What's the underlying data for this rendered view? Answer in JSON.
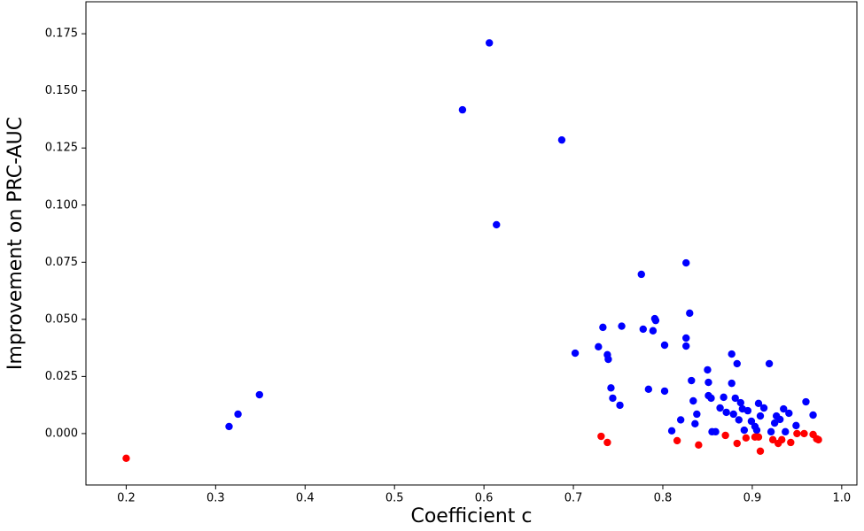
{
  "chart_data": {
    "type": "scatter",
    "x_label": "Coefficient c",
    "y_label": "Improvement on PRC-AUC",
    "xlim": [
      0.155,
      1.017
    ],
    "ylim": [
      -0.0225,
      0.189
    ],
    "xticks": [
      0.2,
      0.3,
      0.4,
      0.5,
      0.6,
      0.7,
      0.8,
      0.9,
      {
        "value": 1.0,
        "label": "1.0"
      }
    ],
    "yticks": [
      {
        "value": 0,
        "label": "0.000"
      },
      {
        "value": 0.025,
        "label": "0.025"
      },
      {
        "value": 0.05,
        "label": "0.050"
      },
      {
        "value": 0.075,
        "label": "0.075"
      },
      {
        "value": 0.1,
        "label": "0.100"
      },
      {
        "value": 0.125,
        "label": "0.125"
      },
      {
        "value": 0.15,
        "label": "0.150"
      },
      {
        "value": 0.175,
        "label": "0.175"
      }
    ],
    "grid": false,
    "series": [
      {
        "color": "#0000ff",
        "x": [
          0.315,
          0.325,
          0.349,
          0.576,
          0.606,
          0.614,
          0.687,
          0.702,
          0.728,
          0.733,
          0.738,
          0.739,
          0.742,
          0.744,
          0.752,
          0.754,
          0.776,
          0.778,
          0.784,
          0.789,
          0.791,
          0.792,
          0.802,
          0.802,
          0.81,
          0.82,
          0.826,
          0.826,
          0.826,
          0.83,
          0.832,
          0.834,
          0.836,
          0.838,
          0.85,
          0.851,
          0.851,
          0.854,
          0.855,
          0.859,
          0.864,
          0.868,
          0.871,
          0.877,
          0.877,
          0.879,
          0.881,
          0.883,
          0.885,
          0.887,
          0.889,
          0.891,
          0.895,
          0.899,
          0.903,
          0.905,
          0.907,
          0.909,
          0.913,
          0.919,
          0.921,
          0.925,
          0.927,
          0.931,
          0.935,
          0.937,
          0.941,
          0.949,
          0.96,
          0.968
        ],
        "values": [
          0.0031,
          0.0085,
          0.017,
          0.1417,
          0.171,
          0.0914,
          0.1285,
          0.0352,
          0.038,
          0.0465,
          0.0345,
          0.0325,
          0.02,
          0.0155,
          0.0124,
          0.047,
          0.0697,
          0.0457,
          0.0194,
          0.045,
          0.0503,
          0.0495,
          0.0387,
          0.0186,
          0.0012,
          0.006,
          0.0747,
          0.0418,
          0.0383,
          0.0527,
          0.0232,
          0.0143,
          0.0043,
          0.0085,
          0.0279,
          0.0224,
          0.0166,
          0.0155,
          0.0008,
          0.0008,
          0.0112,
          0.0159,
          0.0093,
          0.0348,
          0.022,
          0.0085,
          0.0155,
          0.0306,
          0.006,
          0.0135,
          0.0108,
          0.0015,
          0.01,
          0.0054,
          0.0031,
          0.0015,
          0.0132,
          0.0077,
          0.0112,
          0.0306,
          0.0008,
          0.0046,
          0.0077,
          0.0062,
          0.0108,
          0.0008,
          0.0089,
          0.0035,
          0.0139,
          0.0081
        ]
      },
      {
        "color": "#ff0000",
        "x": [
          0.2,
          0.731,
          0.738,
          0.816,
          0.84,
          0.87,
          0.883,
          0.893,
          0.903,
          0.907,
          0.909,
          0.923,
          0.929,
          0.933,
          0.943,
          0.95,
          0.958,
          0.968,
          0.972,
          0.974
        ],
        "values": [
          -0.0108,
          -0.0012,
          -0.0039,
          -0.0031,
          -0.005,
          -0.0008,
          -0.0043,
          -0.0019,
          -0.0015,
          -0.0015,
          -0.0077,
          -0.0027,
          -0.0043,
          -0.0027,
          -0.0039,
          0,
          0,
          -0.0004,
          -0.0023,
          -0.0027
        ]
      }
    ]
  }
}
